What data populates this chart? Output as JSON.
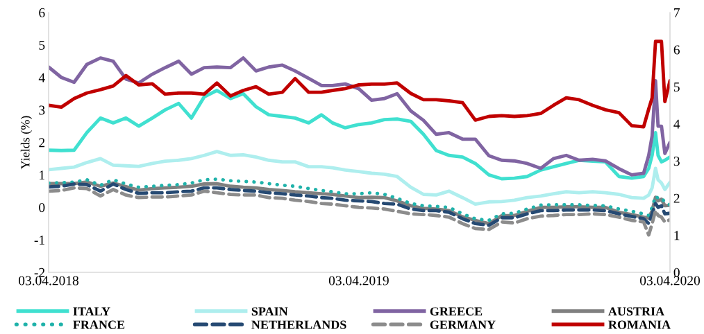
{
  "chart_data": {
    "type": "line",
    "ylabel": "Yields (%)",
    "x": [
      "2018-04-03",
      "2018-04-18",
      "2018-05-03",
      "2018-05-18",
      "2018-06-03",
      "2018-06-18",
      "2018-07-03",
      "2018-07-18",
      "2018-08-03",
      "2018-08-18",
      "2018-09-03",
      "2018-09-18",
      "2018-10-03",
      "2018-10-18",
      "2018-11-03",
      "2018-11-18",
      "2018-12-03",
      "2018-12-18",
      "2019-01-03",
      "2019-01-18",
      "2019-02-03",
      "2019-02-18",
      "2019-03-03",
      "2019-03-18",
      "2019-04-03",
      "2019-04-18",
      "2019-05-03",
      "2019-05-18",
      "2019-06-03",
      "2019-06-18",
      "2019-07-03",
      "2019-07-18",
      "2019-08-03",
      "2019-08-18",
      "2019-09-03",
      "2019-09-18",
      "2019-10-03",
      "2019-10-18",
      "2019-11-03",
      "2019-11-18",
      "2019-12-03",
      "2019-12-18",
      "2020-01-03",
      "2020-01-18",
      "2020-02-03",
      "2020-02-18",
      "2020-03-03",
      "2020-03-09",
      "2020-03-13",
      "2020-03-17",
      "2020-03-20",
      "2020-03-24",
      "2020-03-28",
      "2020-04-03"
    ],
    "series": [
      {
        "name": "ITALY",
        "color": "#40e0d0",
        "line_style": "solid",
        "values": [
          1.76,
          1.75,
          1.76,
          2.3,
          2.75,
          2.6,
          2.75,
          2.5,
          2.75,
          3.0,
          3.2,
          2.75,
          3.4,
          3.6,
          3.35,
          3.5,
          3.1,
          2.85,
          2.8,
          2.75,
          2.6,
          2.85,
          2.6,
          2.45,
          2.55,
          2.6,
          2.7,
          2.72,
          2.65,
          2.25,
          1.75,
          1.6,
          1.55,
          1.35,
          1.0,
          0.88,
          0.9,
          0.95,
          1.15,
          1.25,
          1.35,
          1.45,
          1.42,
          1.4,
          0.95,
          0.9,
          0.95,
          1.2,
          1.6,
          2.3,
          1.6,
          1.4,
          1.45,
          1.55
        ]
      },
      {
        "name": "SPAIN",
        "color": "#aeeeee",
        "line_style": "solid",
        "values": [
          1.16,
          1.2,
          1.24,
          1.38,
          1.5,
          1.3,
          1.28,
          1.26,
          1.35,
          1.42,
          1.45,
          1.5,
          1.6,
          1.72,
          1.6,
          1.62,
          1.55,
          1.45,
          1.4,
          1.4,
          1.25,
          1.25,
          1.22,
          1.15,
          1.1,
          1.05,
          1.02,
          0.95,
          0.62,
          0.4,
          0.38,
          0.5,
          0.3,
          0.1,
          0.17,
          0.18,
          0.22,
          0.3,
          0.35,
          0.42,
          0.48,
          0.45,
          0.48,
          0.45,
          0.4,
          0.3,
          0.28,
          0.38,
          0.6,
          1.2,
          0.85,
          0.75,
          0.55,
          0.77
        ]
      },
      {
        "name": "GREECE",
        "color": "#8064a2",
        "line_style": "solid",
        "values": [
          4.32,
          4.0,
          3.85,
          4.4,
          4.6,
          4.5,
          3.95,
          3.83,
          4.1,
          4.3,
          4.5,
          4.1,
          4.3,
          4.32,
          4.3,
          4.6,
          4.2,
          4.32,
          4.38,
          4.2,
          3.97,
          3.75,
          3.75,
          3.8,
          3.65,
          3.3,
          3.35,
          3.5,
          2.97,
          2.68,
          2.25,
          2.3,
          2.1,
          2.1,
          1.59,
          1.45,
          1.43,
          1.35,
          1.2,
          1.5,
          1.6,
          1.45,
          1.48,
          1.43,
          1.19,
          1.0,
          1.05,
          1.6,
          2.2,
          3.9,
          2.5,
          2.5,
          1.66,
          2.0
        ]
      },
      {
        "name": "AUSTRIA",
        "color": "#808080",
        "line_style": "solid",
        "values": [
          0.73,
          0.73,
          0.73,
          0.78,
          0.65,
          0.75,
          0.64,
          0.53,
          0.58,
          0.6,
          0.62,
          0.65,
          0.72,
          0.73,
          0.65,
          0.62,
          0.6,
          0.55,
          0.52,
          0.48,
          0.45,
          0.42,
          0.4,
          0.35,
          0.3,
          0.31,
          0.3,
          0.2,
          0.05,
          -0.03,
          -0.05,
          -0.1,
          -0.29,
          -0.4,
          -0.5,
          -0.26,
          -0.25,
          -0.12,
          0.0,
          0.0,
          0.02,
          0.02,
          0.0,
          0.0,
          -0.15,
          -0.22,
          -0.3,
          -0.33,
          -0.1,
          0.31,
          0.2,
          0.25,
          0.05,
          0.06
        ]
      },
      {
        "name": "FRANCE",
        "color": "#20b2aa",
        "line_style": "dotted",
        "values": [
          0.75,
          0.76,
          0.78,
          0.85,
          0.68,
          0.85,
          0.72,
          0.62,
          0.65,
          0.68,
          0.7,
          0.75,
          0.85,
          0.87,
          0.82,
          0.8,
          0.78,
          0.73,
          0.68,
          0.65,
          0.58,
          0.52,
          0.48,
          0.42,
          0.42,
          0.45,
          0.4,
          0.28,
          0.12,
          0.05,
          0.03,
          0.0,
          -0.2,
          -0.35,
          -0.4,
          -0.2,
          -0.18,
          -0.05,
          0.07,
          0.08,
          0.08,
          0.08,
          0.06,
          0.05,
          -0.05,
          -0.12,
          -0.2,
          -0.25,
          0.0,
          0.35,
          0.28,
          0.3,
          0.15,
          0.08
        ]
      },
      {
        "name": "NETHERLANDS",
        "color": "#264a73",
        "line_style": "dashed",
        "values": [
          0.63,
          0.65,
          0.72,
          0.7,
          0.5,
          0.72,
          0.55,
          0.43,
          0.45,
          0.45,
          0.48,
          0.5,
          0.6,
          0.6,
          0.55,
          0.52,
          0.5,
          0.45,
          0.42,
          0.38,
          0.35,
          0.3,
          0.28,
          0.22,
          0.2,
          0.18,
          0.12,
          0.1,
          -0.05,
          -0.1,
          -0.1,
          -0.15,
          -0.35,
          -0.5,
          -0.55,
          -0.32,
          -0.32,
          -0.2,
          -0.1,
          -0.1,
          -0.08,
          -0.08,
          -0.08,
          -0.1,
          -0.2,
          -0.28,
          -0.35,
          -0.5,
          -0.2,
          0.12,
          0.0,
          0.05,
          -0.2,
          -0.18
        ]
      },
      {
        "name": "GERMANY",
        "color": "#8c8c8c",
        "line_style": "dashed",
        "values": [
          0.5,
          0.52,
          0.6,
          0.58,
          0.35,
          0.55,
          0.38,
          0.3,
          0.32,
          0.32,
          0.35,
          0.38,
          0.5,
          0.45,
          0.4,
          0.38,
          0.38,
          0.3,
          0.28,
          0.22,
          0.18,
          0.12,
          0.1,
          0.05,
          0.0,
          -0.02,
          -0.05,
          -0.12,
          -0.2,
          -0.22,
          -0.25,
          -0.3,
          -0.5,
          -0.65,
          -0.68,
          -0.45,
          -0.48,
          -0.35,
          -0.27,
          -0.25,
          -0.22,
          -0.22,
          -0.2,
          -0.22,
          -0.3,
          -0.4,
          -0.45,
          -0.85,
          -0.5,
          -0.1,
          -0.25,
          -0.3,
          -0.45,
          -0.38
        ]
      },
      {
        "name": "ROMANIA",
        "color": "#c00000",
        "line_style": "solid",
        "axis": "y2",
        "values": [
          4.5,
          4.45,
          4.68,
          4.83,
          4.92,
          5.02,
          5.3,
          5.05,
          5.08,
          4.8,
          4.83,
          4.83,
          4.8,
          5.1,
          4.75,
          4.9,
          5.0,
          4.8,
          4.85,
          5.22,
          4.85,
          4.85,
          4.9,
          4.95,
          5.05,
          5.07,
          5.07,
          5.1,
          4.82,
          4.65,
          4.65,
          4.62,
          4.57,
          4.1,
          4.2,
          4.22,
          4.2,
          4.22,
          4.28,
          4.5,
          4.7,
          4.65,
          4.5,
          4.38,
          4.3,
          3.95,
          3.92,
          4.4,
          4.7,
          6.22,
          6.22,
          6.22,
          4.6,
          5.16
        ]
      }
    ],
    "xlim": [
      "2018-04-03",
      "2020-04-03"
    ],
    "xticks": [
      {
        "value": "2018-04-03",
        "label": "03.04.2018"
      },
      {
        "value": "2019-04-03",
        "label": "03.04.2019"
      },
      {
        "value": "2020-04-03",
        "label": "03.04.2020"
      }
    ],
    "ylim": [
      -2,
      6
    ],
    "yticks": [
      -2,
      -1,
      0,
      1,
      2,
      3,
      4,
      5,
      6
    ],
    "y2lim": [
      0,
      7
    ],
    "y2ticks": [
      0,
      1,
      2,
      3,
      4,
      5,
      6,
      7
    ],
    "grid": false,
    "legend": "bottom",
    "marker": "none"
  }
}
